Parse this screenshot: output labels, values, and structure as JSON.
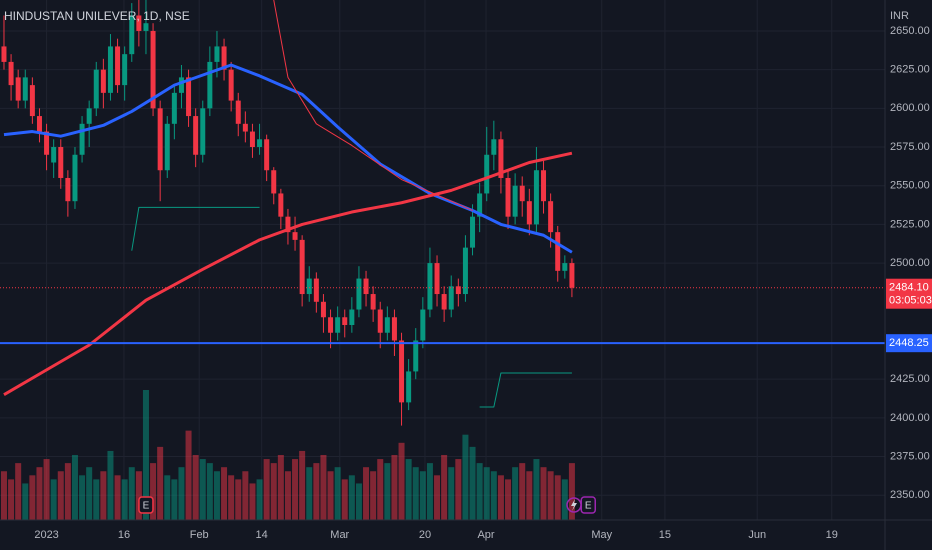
{
  "chart_data": {
    "type": "candlestick",
    "title": "HINDUSTAN UNILEVER, 1D, NSE",
    "currency": "INR",
    "up_color": "#089981",
    "down_color": "#f23645",
    "ylim": [
      2334,
      2670
    ],
    "xlim": [
      -0.56,
      124.1
    ],
    "yticks": [
      {
        "value": 2650,
        "label": "2650.00"
      },
      {
        "value": 2625,
        "label": "2625.00"
      },
      {
        "value": 2600,
        "label": "2600.00"
      },
      {
        "value": 2575,
        "label": "2575.00"
      },
      {
        "value": 2550,
        "label": "2550.00"
      },
      {
        "value": 2525,
        "label": "2525.00"
      },
      {
        "value": 2500,
        "label": "2500.00"
      },
      {
        "value": 2425,
        "label": "2425.00"
      },
      {
        "value": 2400,
        "label": "2400.00"
      },
      {
        "value": 2375,
        "label": "2375.00"
      },
      {
        "value": 2350,
        "label": "2350.00"
      }
    ],
    "xticks": [
      {
        "value": 6.0,
        "label": "2023"
      },
      {
        "value": 16.9,
        "label": "16"
      },
      {
        "value": 27.5,
        "label": "Feb"
      },
      {
        "value": 36.3,
        "label": "14"
      },
      {
        "value": 47.3,
        "label": "Mar"
      },
      {
        "value": 59.3,
        "label": "20"
      },
      {
        "value": 67.9,
        "label": "Apr"
      },
      {
        "value": 84.2,
        "label": "May"
      },
      {
        "value": 93.1,
        "label": "15"
      },
      {
        "value": 106.1,
        "label": "Jun"
      },
      {
        "value": 116.6,
        "label": "19"
      }
    ],
    "grid": true,
    "candles": [
      [
        2640,
        2660,
        2625,
        2630
      ],
      [
        2630,
        2635,
        2605,
        2615
      ],
      [
        2620,
        2625,
        2600,
        2605
      ],
      [
        2605,
        2625,
        2600,
        2620
      ],
      [
        2615,
        2620,
        2590,
        2595
      ],
      [
        2595,
        2600,
        2578,
        2585
      ],
      [
        2585,
        2590,
        2560,
        2570
      ],
      [
        2565,
        2580,
        2555,
        2575
      ],
      [
        2575,
        2580,
        2548,
        2555
      ],
      [
        2555,
        2560,
        2530,
        2540
      ],
      [
        2540,
        2575,
        2535,
        2570
      ],
      [
        2570,
        2595,
        2565,
        2590
      ],
      [
        2590,
        2605,
        2575,
        2600
      ],
      [
        2600,
        2630,
        2595,
        2625
      ],
      [
        2625,
        2632,
        2600,
        2610
      ],
      [
        2610,
        2648,
        2605,
        2640
      ],
      [
        2640,
        2645,
        2610,
        2615
      ],
      [
        2615,
        2640,
        2605,
        2635
      ],
      [
        2635,
        2668,
        2630,
        2660
      ],
      [
        2660,
        2670,
        2640,
        2650
      ],
      [
        2650,
        2670,
        2635,
        2655
      ],
      [
        2650,
        2655,
        2595,
        2600
      ],
      [
        2600,
        2605,
        2540,
        2560
      ],
      [
        2560,
        2595,
        2555,
        2590
      ],
      [
        2590,
        2615,
        2580,
        2610
      ],
      [
        2610,
        2628,
        2600,
        2620
      ],
      [
        2620,
        2625,
        2588,
        2595
      ],
      [
        2595,
        2600,
        2562,
        2570
      ],
      [
        2570,
        2605,
        2565,
        2600
      ],
      [
        2600,
        2640,
        2595,
        2630
      ],
      [
        2630,
        2650,
        2620,
        2640
      ],
      [
        2640,
        2645,
        2618,
        2625
      ],
      [
        2625,
        2630,
        2598,
        2605
      ],
      [
        2605,
        2610,
        2582,
        2590
      ],
      [
        2590,
        2598,
        2578,
        2585
      ],
      [
        2585,
        2590,
        2568,
        2575
      ],
      [
        2575,
        2590,
        2570,
        2580
      ],
      [
        2580,
        2583,
        2553,
        2560
      ],
      [
        2560,
        2562,
        2538,
        2545
      ],
      [
        2545,
        2548,
        2522,
        2530
      ],
      [
        2530,
        2535,
        2512,
        2520
      ],
      [
        2520,
        2530,
        2508,
        2515
      ],
      [
        2515,
        2518,
        2472,
        2480
      ],
      [
        2480,
        2498,
        2475,
        2490
      ],
      [
        2490,
        2494,
        2468,
        2475
      ],
      [
        2475,
        2480,
        2455,
        2465
      ],
      [
        2465,
        2470,
        2445,
        2455
      ],
      [
        2455,
        2472,
        2450,
        2465
      ],
      [
        2465,
        2470,
        2452,
        2460
      ],
      [
        2460,
        2478,
        2455,
        2470
      ],
      [
        2470,
        2498,
        2465,
        2490
      ],
      [
        2490,
        2495,
        2472,
        2480
      ],
      [
        2480,
        2485,
        2462,
        2470
      ],
      [
        2470,
        2475,
        2445,
        2455
      ],
      [
        2455,
        2472,
        2450,
        2465
      ],
      [
        2465,
        2470,
        2440,
        2450
      ],
      [
        2450,
        2455,
        2395,
        2410
      ],
      [
        2410,
        2438,
        2405,
        2430
      ],
      [
        2430,
        2458,
        2425,
        2450
      ],
      [
        2450,
        2478,
        2445,
        2470
      ],
      [
        2470,
        2510,
        2465,
        2500
      ],
      [
        2500,
        2505,
        2472,
        2480
      ],
      [
        2480,
        2485,
        2462,
        2470
      ],
      [
        2470,
        2492,
        2465,
        2485
      ],
      [
        2485,
        2490,
        2472,
        2480
      ],
      [
        2480,
        2518,
        2475,
        2510
      ],
      [
        2510,
        2538,
        2505,
        2530
      ],
      [
        2530,
        2552,
        2520,
        2545
      ],
      [
        2545,
        2588,
        2540,
        2570
      ],
      [
        2570,
        2592,
        2560,
        2580
      ],
      [
        2580,
        2585,
        2545,
        2555
      ],
      [
        2555,
        2560,
        2522,
        2530
      ],
      [
        2530,
        2558,
        2525,
        2550
      ],
      [
        2550,
        2556,
        2530,
        2540
      ],
      [
        2540,
        2548,
        2518,
        2525
      ],
      [
        2525,
        2575,
        2520,
        2560
      ],
      [
        2560,
        2566,
        2532,
        2540
      ],
      [
        2540,
        2545,
        2510,
        2520
      ],
      [
        2520,
        2524,
        2488,
        2495
      ],
      [
        2495,
        2505,
        2490,
        2500
      ],
      [
        2500,
        2503,
        2478,
        2484.1
      ]
    ],
    "volumes": [
      1.2,
      1.0,
      1.4,
      0.9,
      1.1,
      1.3,
      1.5,
      1.0,
      1.2,
      1.4,
      1.6,
      1.1,
      1.3,
      1.0,
      1.2,
      1.7,
      1.1,
      1.0,
      1.3,
      1.2,
      3.2,
      1.4,
      1.8,
      1.1,
      1.0,
      1.3,
      2.2,
      1.6,
      1.5,
      1.4,
      1.2,
      1.3,
      1.1,
      1.0,
      1.2,
      0.9,
      1.0,
      1.5,
      1.4,
      1.6,
      1.2,
      1.5,
      1.7,
      1.3,
      1.4,
      1.6,
      1.2,
      1.3,
      1.0,
      1.1,
      0.9,
      1.3,
      1.2,
      1.5,
      1.4,
      1.6,
      1.9,
      1.5,
      1.3,
      1.2,
      1.4,
      1.1,
      1.6,
      1.3,
      1.5,
      2.1,
      1.8,
      1.4,
      1.3,
      1.2,
      1.1,
      1.0,
      1.3,
      1.4,
      1.2,
      1.5,
      1.3,
      1.2,
      1.1,
      1.0,
      1.4
    ],
    "lines": [
      {
        "color": "#2962ff",
        "width": 3,
        "x": [
          0,
          4,
          8,
          14,
          18,
          24,
          32,
          36,
          42,
          47,
          53,
          60,
          66,
          70,
          76,
          80
        ],
        "values": [
          2583,
          2585,
          2582,
          2589,
          2598,
          2615,
          2628,
          2621,
          2609,
          2588,
          2564,
          2545,
          2534,
          2525,
          2518,
          2507
        ]
      },
      {
        "color": "#f23645",
        "width": 3,
        "x": [
          0,
          6,
          12,
          20,
          28,
          36,
          42,
          49,
          56,
          63,
          68,
          74,
          80
        ],
        "values": [
          2415,
          2431,
          2447,
          2476,
          2496,
          2515,
          2525,
          2533,
          2539,
          2547,
          2555,
          2565,
          2571
        ]
      },
      {
        "color": "#f23645",
        "width": 1,
        "x": [
          38,
          40,
          44,
          49,
          56,
          61,
          66
        ],
        "values": [
          2670,
          2620,
          2590,
          2576,
          2554,
          2544,
          2534
        ]
      },
      {
        "color": "#089981",
        "width": 1,
        "x": [
          18,
          19,
          36
        ],
        "values": [
          2508,
          2536,
          2536
        ]
      },
      {
        "color": "#089981",
        "width": 1,
        "x": [
          67,
          69,
          70,
          80
        ],
        "values": [
          2407,
          2407,
          2429,
          2429
        ]
      }
    ],
    "price_lines": [
      {
        "value": 2448.25,
        "label": "2448.25",
        "color": "#2962ff"
      }
    ],
    "last_price": {
      "value": 2484.1,
      "label": "2484.10",
      "countdown": "03:05:03",
      "color": "#f23645"
    },
    "events": [
      {
        "x": 20,
        "label": "E",
        "color": "#f23645"
      },
      {
        "x": 82.3,
        "label": "E",
        "color": "#9c27b0"
      }
    ]
  }
}
